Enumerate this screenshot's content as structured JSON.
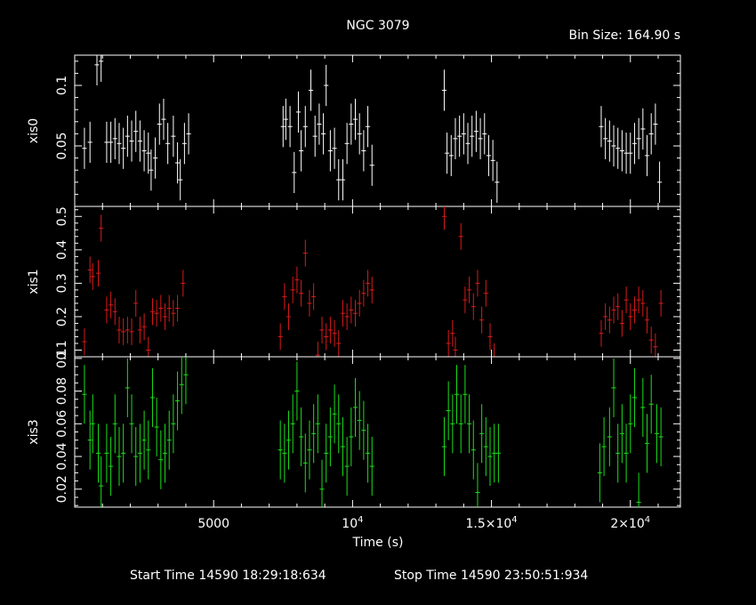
{
  "chart_data": {
    "type": "scatter",
    "title": "NGC 3079",
    "subtitle": "Bin Size: 164.90 s",
    "xlabel": "Time (s)",
    "footer_start": "Start Time 14590 18:29:18:634",
    "footer_stop": "Stop Time 14590 23:50:51:934",
    "xlim": [
      0,
      21800
    ],
    "x_ticks": [
      {
        "value": 5000,
        "label": "5000",
        "sup": ""
      },
      {
        "value": 10000,
        "label": "10",
        "sup": "4"
      },
      {
        "value": 15000,
        "label": "1.5×10",
        "sup": "4"
      },
      {
        "value": 20000,
        "label": "2×10",
        "sup": "4"
      }
    ],
    "x_minor_step": 1000,
    "panels": [
      {
        "name": "xis0",
        "ylabel": "xis0",
        "color": "#ffffff",
        "ylim": [
          0.0,
          0.125
        ],
        "ticks": [
          0.05,
          0.1
        ],
        "tick_labels": [
          "0.05",
          "0.1"
        ],
        "minor_step": 0.01,
        "err": 0.017,
        "points": [
          [
            350,
            0.048
          ],
          [
            550,
            0.053
          ],
          [
            800,
            0.117
          ],
          [
            950,
            0.12
          ],
          [
            1150,
            0.053
          ],
          [
            1300,
            0.053
          ],
          [
            1450,
            0.056
          ],
          [
            1600,
            0.052
          ],
          [
            1750,
            0.048
          ],
          [
            1900,
            0.058
          ],
          [
            2050,
            0.054
          ],
          [
            2200,
            0.062
          ],
          [
            2350,
            0.054
          ],
          [
            2500,
            0.046
          ],
          [
            2650,
            0.044
          ],
          [
            2750,
            0.03
          ],
          [
            2900,
            0.04
          ],
          [
            3050,
            0.068
          ],
          [
            3200,
            0.072
          ],
          [
            3350,
            0.052
          ],
          [
            3550,
            0.058
          ],
          [
            3700,
            0.036
          ],
          [
            3800,
            0.022
          ],
          [
            3950,
            0.052
          ],
          [
            4100,
            0.06
          ],
          [
            7500,
            0.066
          ],
          [
            7600,
            0.072
          ],
          [
            7750,
            0.066
          ],
          [
            7900,
            0.028
          ],
          [
            8050,
            0.078
          ],
          [
            8150,
            0.046
          ],
          [
            8300,
            0.066
          ],
          [
            8500,
            0.096
          ],
          [
            8650,
            0.058
          ],
          [
            8800,
            0.068
          ],
          [
            8950,
            0.06
          ],
          [
            9050,
            0.1
          ],
          [
            9200,
            0.046
          ],
          [
            9350,
            0.048
          ],
          [
            9500,
            0.022
          ],
          [
            9650,
            0.022
          ],
          [
            9800,
            0.052
          ],
          [
            9950,
            0.068
          ],
          [
            10100,
            0.072
          ],
          [
            10250,
            0.06
          ],
          [
            10400,
            0.046
          ],
          [
            10550,
            0.066
          ],
          [
            10700,
            0.034
          ],
          [
            13300,
            0.096
          ],
          [
            13400,
            0.044
          ],
          [
            13550,
            0.042
          ],
          [
            13700,
            0.056
          ],
          [
            13850,
            0.058
          ],
          [
            14000,
            0.06
          ],
          [
            14150,
            0.052
          ],
          [
            14300,
            0.058
          ],
          [
            14450,
            0.062
          ],
          [
            14600,
            0.056
          ],
          [
            14750,
            0.06
          ],
          [
            14900,
            0.042
          ],
          [
            15050,
            0.038
          ],
          [
            15200,
            0.02
          ],
          [
            18950,
            0.066
          ],
          [
            19100,
            0.056
          ],
          [
            19250,
            0.054
          ],
          [
            19400,
            0.05
          ],
          [
            19550,
            0.048
          ],
          [
            19700,
            0.046
          ],
          [
            19850,
            0.044
          ],
          [
            20000,
            0.044
          ],
          [
            20150,
            0.052
          ],
          [
            20300,
            0.056
          ],
          [
            20450,
            0.064
          ],
          [
            20600,
            0.042
          ],
          [
            20750,
            0.06
          ],
          [
            20900,
            0.068
          ],
          [
            21050,
            0.02
          ]
        ]
      },
      {
        "name": "xis1",
        "ylabel": "xis1",
        "color": "#d71a1a",
        "ylim": [
          0.08,
          0.53
        ],
        "ticks": [
          0.1,
          0.2,
          0.3,
          0.4,
          0.5
        ],
        "tick_labels": [
          "0.1",
          "0.2",
          "0.3",
          "0.4",
          "0.5"
        ],
        "minor_step": 0.02,
        "err": 0.04,
        "points": [
          [
            350,
            0.125
          ],
          [
            550,
            0.34
          ],
          [
            650,
            0.32
          ],
          [
            850,
            0.33
          ],
          [
            950,
            0.465
          ],
          [
            1150,
            0.22
          ],
          [
            1300,
            0.235
          ],
          [
            1450,
            0.215
          ],
          [
            1600,
            0.16
          ],
          [
            1750,
            0.155
          ],
          [
            1900,
            0.16
          ],
          [
            2050,
            0.155
          ],
          [
            2200,
            0.24
          ],
          [
            2350,
            0.16
          ],
          [
            2500,
            0.17
          ],
          [
            2650,
            0.1
          ],
          [
            2800,
            0.215
          ],
          [
            2950,
            0.21
          ],
          [
            3100,
            0.225
          ],
          [
            3250,
            0.2
          ],
          [
            3400,
            0.225
          ],
          [
            3550,
            0.21
          ],
          [
            3700,
            0.225
          ],
          [
            3900,
            0.3
          ],
          [
            7400,
            0.14
          ],
          [
            7550,
            0.26
          ],
          [
            7700,
            0.2
          ],
          [
            7850,
            0.28
          ],
          [
            8000,
            0.31
          ],
          [
            8150,
            0.27
          ],
          [
            8300,
            0.39
          ],
          [
            8450,
            0.24
          ],
          [
            8600,
            0.26
          ],
          [
            8750,
            0.085
          ],
          [
            8900,
            0.16
          ],
          [
            9050,
            0.14
          ],
          [
            9200,
            0.16
          ],
          [
            9350,
            0.15
          ],
          [
            9500,
            0.12
          ],
          [
            9650,
            0.21
          ],
          [
            9800,
            0.2
          ],
          [
            9950,
            0.22
          ],
          [
            10100,
            0.21
          ],
          [
            10250,
            0.24
          ],
          [
            10400,
            0.27
          ],
          [
            10550,
            0.3
          ],
          [
            10700,
            0.28
          ],
          [
            13300,
            0.5
          ],
          [
            13450,
            0.12
          ],
          [
            13600,
            0.15
          ],
          [
            13700,
            0.1
          ],
          [
            13900,
            0.44
          ],
          [
            14050,
            0.25
          ],
          [
            14200,
            0.28
          ],
          [
            14350,
            0.23
          ],
          [
            14500,
            0.3
          ],
          [
            14650,
            0.19
          ],
          [
            14800,
            0.27
          ],
          [
            14950,
            0.14
          ],
          [
            15100,
            0.08
          ],
          [
            18950,
            0.15
          ],
          [
            19100,
            0.2
          ],
          [
            19250,
            0.19
          ],
          [
            19400,
            0.22
          ],
          [
            19550,
            0.23
          ],
          [
            19700,
            0.18
          ],
          [
            19850,
            0.25
          ],
          [
            20000,
            0.2
          ],
          [
            20150,
            0.22
          ],
          [
            20300,
            0.25
          ],
          [
            20450,
            0.24
          ],
          [
            20600,
            0.19
          ],
          [
            20750,
            0.13
          ],
          [
            20900,
            0.11
          ],
          [
            21100,
            0.24
          ]
        ]
      },
      {
        "name": "xis3",
        "ylabel": "xis3",
        "color": "#1adf1a",
        "ylim": [
          0.009,
          0.101
        ],
        "ticks": [
          0.02,
          0.04,
          0.06,
          0.08,
          0.1
        ],
        "tick_labels": [
          "0.02",
          "0.04",
          "0.06",
          "0.08",
          "0.1"
        ],
        "minor_step": 0.005,
        "err": 0.018,
        "points": [
          [
            350,
            0.078
          ],
          [
            550,
            0.05
          ],
          [
            650,
            0.06
          ],
          [
            850,
            0.042
          ],
          [
            950,
            0.022
          ],
          [
            1150,
            0.042
          ],
          [
            1300,
            0.034
          ],
          [
            1450,
            0.06
          ],
          [
            1600,
            0.04
          ],
          [
            1750,
            0.042
          ],
          [
            1900,
            0.082
          ],
          [
            2050,
            0.06
          ],
          [
            2200,
            0.04
          ],
          [
            2350,
            0.042
          ],
          [
            2500,
            0.05
          ],
          [
            2650,
            0.044
          ],
          [
            2800,
            0.076
          ],
          [
            2950,
            0.058
          ],
          [
            3100,
            0.038
          ],
          [
            3250,
            0.042
          ],
          [
            3400,
            0.05
          ],
          [
            3550,
            0.06
          ],
          [
            3700,
            0.074
          ],
          [
            3850,
            0.084
          ],
          [
            4000,
            0.09
          ],
          [
            7400,
            0.044
          ],
          [
            7550,
            0.042
          ],
          [
            7700,
            0.05
          ],
          [
            7850,
            0.06
          ],
          [
            8000,
            0.08
          ],
          [
            8150,
            0.052
          ],
          [
            8300,
            0.036
          ],
          [
            8450,
            0.044
          ],
          [
            8600,
            0.054
          ],
          [
            8750,
            0.06
          ],
          [
            8900,
            0.02
          ],
          [
            9050,
            0.042
          ],
          [
            9200,
            0.052
          ],
          [
            9350,
            0.066
          ],
          [
            9500,
            0.06
          ],
          [
            9650,
            0.046
          ],
          [
            9800,
            0.034
          ],
          [
            9950,
            0.052
          ],
          [
            10100,
            0.07
          ],
          [
            10250,
            0.062
          ],
          [
            10400,
            0.056
          ],
          [
            10550,
            0.042
          ],
          [
            10700,
            0.034
          ],
          [
            13300,
            0.046
          ],
          [
            13450,
            0.068
          ],
          [
            13600,
            0.06
          ],
          [
            13750,
            0.078
          ],
          [
            13900,
            0.06
          ],
          [
            14050,
            0.078
          ],
          [
            14200,
            0.06
          ],
          [
            14350,
            0.044
          ],
          [
            14500,
            0.018
          ],
          [
            14650,
            0.054
          ],
          [
            14800,
            0.046
          ],
          [
            14950,
            0.04
          ],
          [
            15100,
            0.042
          ],
          [
            15250,
            0.042
          ],
          [
            18900,
            0.03
          ],
          [
            19050,
            0.046
          ],
          [
            19250,
            0.052
          ],
          [
            19400,
            0.082
          ],
          [
            19550,
            0.042
          ],
          [
            19700,
            0.054
          ],
          [
            19850,
            0.042
          ],
          [
            20000,
            0.06
          ],
          [
            20150,
            0.076
          ],
          [
            20300,
            0.012
          ],
          [
            20450,
            0.07
          ],
          [
            20600,
            0.048
          ],
          [
            20750,
            0.072
          ],
          [
            20950,
            0.054
          ],
          [
            21100,
            0.052
          ]
        ]
      }
    ]
  }
}
